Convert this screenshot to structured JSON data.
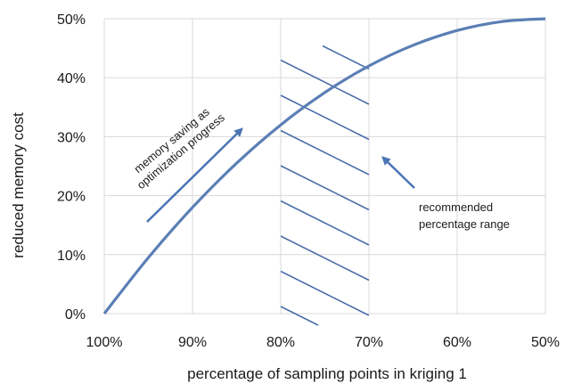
{
  "chart_data": {
    "type": "line",
    "xlabel": "percentage of sampling points in kriging 1",
    "ylabel": "reduced memory cost",
    "x_ticks": [
      "100%",
      "90%",
      "80%",
      "70%",
      "60%",
      "50%"
    ],
    "y_ticks": [
      "0%",
      "10%",
      "20%",
      "30%",
      "40%",
      "50%"
    ],
    "xlim": [
      100,
      50
    ],
    "ylim": [
      0,
      50
    ],
    "grid": true,
    "line_color": "#5b7fb5",
    "series": [
      {
        "x": [
          100,
          95,
          90,
          85,
          80,
          75,
          70,
          65,
          60,
          55,
          50
        ],
        "y": [
          0,
          9.5,
          18,
          25.5,
          32,
          37.5,
          42,
          45.5,
          48,
          49.5,
          50
        ]
      }
    ],
    "shaded_region": {
      "x_from": 80,
      "x_to": 70,
      "pattern": "diagonal-hatch"
    },
    "annotations": {
      "memory_saving": {
        "line1": "memory saving as",
        "line2": "optimization progress"
      },
      "recommended": {
        "line1": "recommended",
        "line2": "percentage range"
      }
    },
    "arrow_color": "#4a74b4"
  }
}
